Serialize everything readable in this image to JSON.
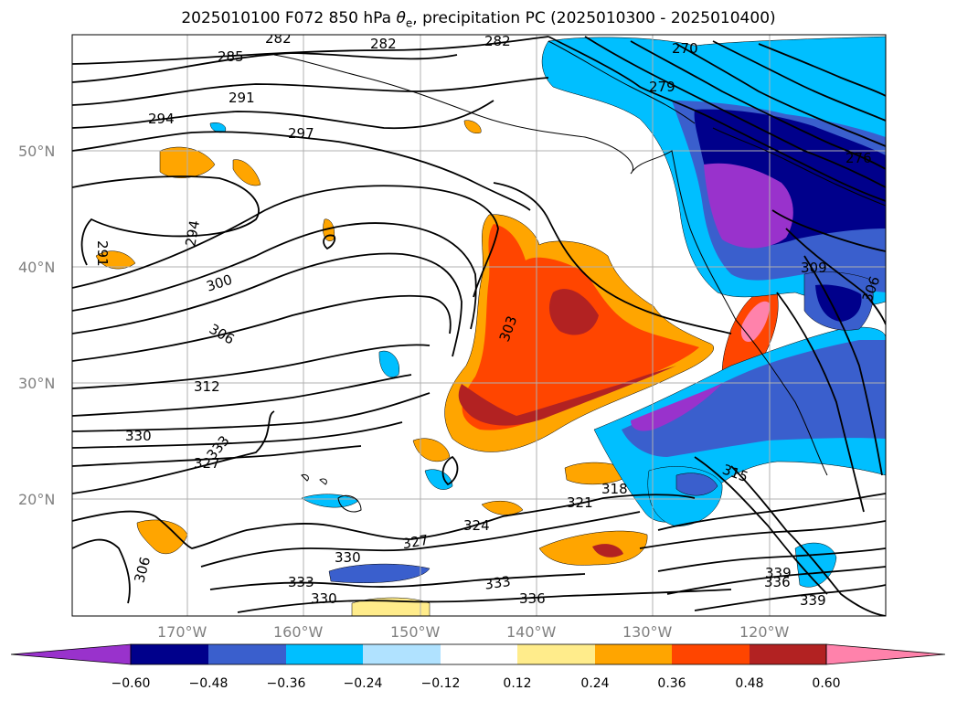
{
  "title": {
    "pre": "2025010100 F072 850 hPa ",
    "theta": "θ",
    "sub": "e",
    "post": ", precipitation PC (2025010300 - 2025010400)"
  },
  "axes": {
    "x_ticks": [
      "170°W",
      "160°W",
      "150°W",
      "140°W",
      "130°W",
      "120°W"
    ],
    "y_ticks": [
      "50°N",
      "40°N",
      "30°N",
      "20°N"
    ]
  },
  "contour_labels": [
    "282",
    "282",
    "282",
    "270",
    "285",
    "291",
    "279",
    "294",
    "297",
    "291",
    "294",
    "300",
    "306",
    "303",
    "312",
    "330",
    "333",
    "327",
    "315",
    "321",
    "318",
    "324",
    "327",
    "330",
    "333",
    "333",
    "330",
    "336",
    "339",
    "336",
    "339",
    "309",
    "306",
    "276"
  ],
  "colorbar": {
    "tick_labels": [
      "−0.60",
      "−0.48",
      "−0.36",
      "−0.24",
      "−0.12",
      "0.12",
      "0.24",
      "0.36",
      "0.48",
      "0.60"
    ],
    "colors": [
      "#9932cc",
      "#00008b",
      "#3a5fcd",
      "#00bfff",
      "#b0e2ff",
      "#ffffff",
      "#ffec8b",
      "#ffa500",
      "#ff4500",
      "#b22222",
      "#ff82ab"
    ],
    "under_color": "#9932cc",
    "over_color": "#ff82ab"
  }
}
